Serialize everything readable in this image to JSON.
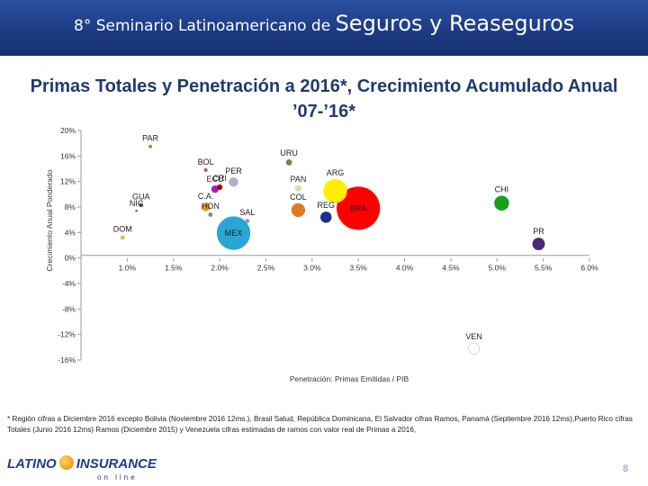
{
  "header": {
    "title_part1": "8° Seminario Latinoamericano de ",
    "title_part2": "Seguros y Reaseguros"
  },
  "slide": {
    "title": "Primas Totales y Penetración a 2016*, Crecimiento Acumulado Anual ’07-’16*"
  },
  "chart_data": {
    "type": "scatter",
    "subtype": "bubble",
    "xlabel": "Penetración: Primas Emitidas / PIB",
    "ylabel": "Crecimiento Anual Ponderado",
    "xlim": [
      0.5,
      6.0
    ],
    "ylim": [
      -16,
      20
    ],
    "xticks": [
      1.0,
      1.5,
      2.0,
      2.5,
      3.0,
      3.5,
      4.0,
      4.5,
      5.0,
      5.5,
      6.0
    ],
    "xtick_labels": [
      "1.0%",
      "1.5%",
      "2.0%",
      "2.5%",
      "3.0%",
      "3.5%",
      "4.0%",
      "4.5%",
      "5.0%",
      "5.5%",
      "6.0%"
    ],
    "yticks": [
      20,
      16,
      12,
      8,
      4,
      0,
      -4,
      -8,
      -12,
      -16
    ],
    "ytick_labels": [
      "20%",
      "16%",
      "12%",
      "8%",
      "4%",
      "0%",
      "-4%",
      "-8%",
      "-12%",
      "-16%"
    ],
    "points": [
      {
        "label": "PAR",
        "x": 1.25,
        "y": 17.5,
        "size": 0.2,
        "color": "#9a8a3a"
      },
      {
        "label": "BOL",
        "x": 1.85,
        "y": 13.8,
        "size": 0.2,
        "color": "#c0504d"
      },
      {
        "label": "URU",
        "x": 2.75,
        "y": 15.0,
        "size": 0.6,
        "color": "#8a7a55"
      },
      {
        "label": "PER",
        "x": 2.15,
        "y": 11.9,
        "size": 1.4,
        "color": "#b9abd0"
      },
      {
        "label": "ECU",
        "x": 1.95,
        "y": 10.8,
        "size": 0.9,
        "color": "#a020c0"
      },
      {
        "label": "CRI",
        "x": 2.0,
        "y": 11.1,
        "size": 0.5,
        "color": "#b00000"
      },
      {
        "label": "PAN",
        "x": 2.85,
        "y": 10.9,
        "size": 0.7,
        "color": "#d8e2a0"
      },
      {
        "label": "ARG",
        "x": 3.25,
        "y": 10.5,
        "size": 9.0,
        "color": "#ffee00"
      },
      {
        "label": "GUA",
        "x": 1.15,
        "y": 8.3,
        "size": 0.3,
        "color": "#666666"
      },
      {
        "label": "C.A.",
        "x": 1.85,
        "y": 8.0,
        "size": 1.2,
        "color": "#e4a020"
      },
      {
        "label": "COL",
        "x": 2.85,
        "y": 7.5,
        "size": 3.0,
        "color": "#e07820"
      },
      {
        "label": "BRA",
        "x": 3.5,
        "y": 7.8,
        "size": 30.0,
        "color": "#ff0000"
      },
      {
        "label": "CHI",
        "x": 5.05,
        "y": 8.6,
        "size": 3.5,
        "color": "#18a018"
      },
      {
        "label": "NIC",
        "x": 1.1,
        "y": 7.4,
        "size": 0.1,
        "color": "#777777"
      },
      {
        "label": "HON",
        "x": 1.9,
        "y": 6.8,
        "size": 0.3,
        "color": "#888888"
      },
      {
        "label": "REG",
        "x": 3.15,
        "y": 6.4,
        "size": 2.0,
        "color": "#1a2f8c"
      },
      {
        "label": "SAL",
        "x": 2.3,
        "y": 5.8,
        "size": 0.3,
        "color": "#9a9a9a"
      },
      {
        "label": "MEX",
        "x": 2.15,
        "y": 3.9,
        "size": 18.0,
        "color": "#2aa6d6"
      },
      {
        "label": "DOM",
        "x": 0.95,
        "y": 3.2,
        "size": 0.3,
        "color": "#e0c040"
      },
      {
        "label": "PR",
        "x": 5.45,
        "y": 2.2,
        "size": 2.5,
        "color": "#4a2a75"
      },
      {
        "label": "VEN",
        "x": 4.75,
        "y": -14.2,
        "size": 2.0,
        "color": "#ffffff"
      }
    ]
  },
  "footnote": "* Región cifras a Diciembre 2016 excepto Bolivia (Noviembre 2016 12ms.), Brasil Salud, República Dominicana, El Salvador cifras Ramos, Panamá (Septiembre 2016 12ms),Puerto Rico cifras Totales (Junio 2016 12ms) Ramos (Diciembre 2015) y Venezuela cifras estimadas de ramos con valor real de Primas a 2016,",
  "footer": {
    "logo_latino": "LATINO",
    "logo_insurance": "INSURANCE",
    "logo_sub": "on line",
    "page_number": "8"
  }
}
